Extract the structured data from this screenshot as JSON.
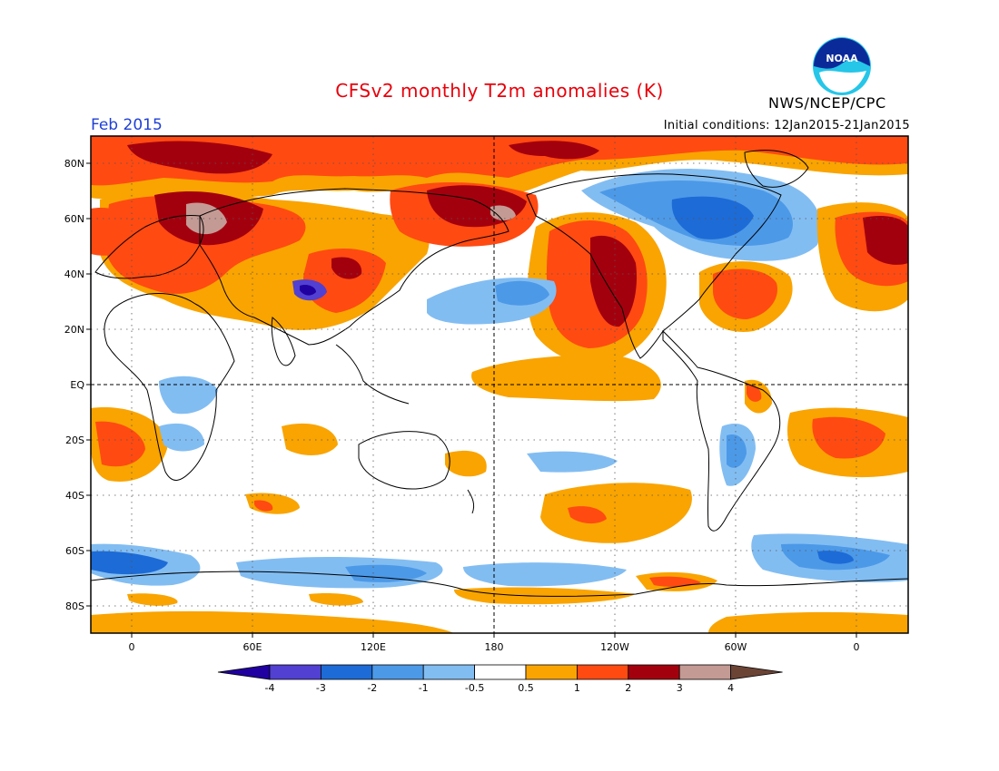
{
  "header": {
    "title": "CFSv2 monthly T2m anomalies (K)",
    "agency": "NWS/NCEP/CPC",
    "logo_text": "NOAA",
    "month": "Feb 2015",
    "initial_conditions": "Initial conditions: 12Jan2015-21Jan2015"
  },
  "map": {
    "lat_labels": [
      "80N",
      "60N",
      "40N",
      "20N",
      "EQ",
      "20S",
      "40S",
      "60S",
      "80S"
    ],
    "lon_labels": [
      "0",
      "60E",
      "120E",
      "180",
      "120W",
      "60W",
      "0"
    ]
  },
  "colorbar": {
    "ticks": [
      "-4",
      "-3",
      "-2",
      "-1",
      "-0.5",
      "0.5",
      "1",
      "2",
      "3",
      "4"
    ],
    "colors": [
      "#2000a0",
      "#5140d2",
      "#1d6bd6",
      "#4c99e8",
      "#82bdf2",
      "#ffffff",
      "#f9a400",
      "#ff4a12",
      "#a3000e",
      "#c49a94",
      "#6b4436"
    ]
  },
  "colors": {
    "title": "#e8000b",
    "month": "#1f3fd6"
  }
}
